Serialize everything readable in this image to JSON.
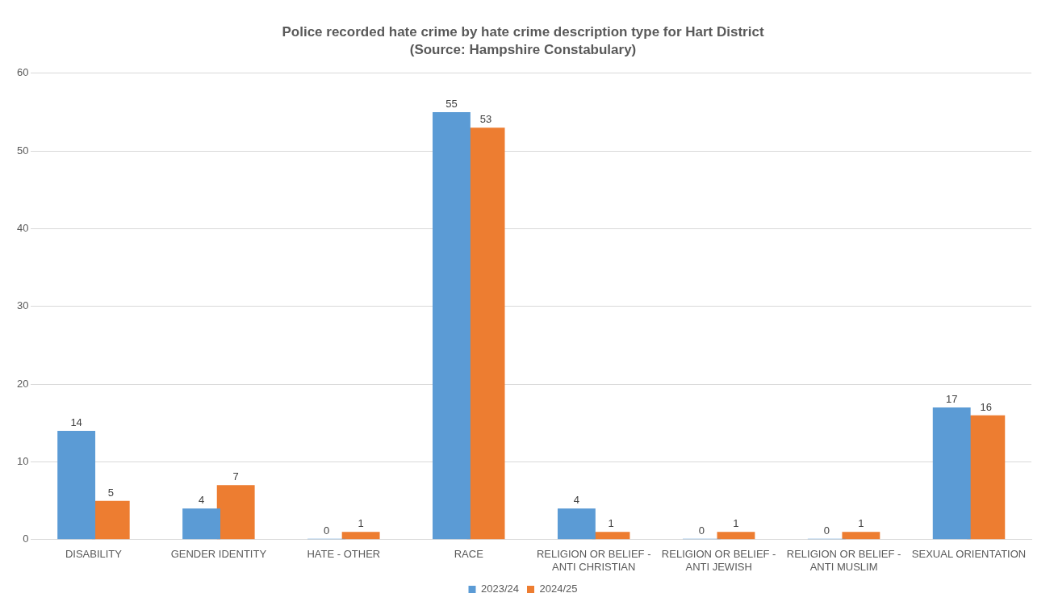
{
  "chart_data": {
    "type": "bar",
    "title": "Police recorded hate crime by hate crime description type for Hart District",
    "subtitle": "(Source: Hampshire Constabulary)",
    "categories": [
      "DISABILITY",
      "GENDER IDENTITY",
      "HATE - OTHER",
      "RACE",
      "RELIGION OR BELIEF - ANTI CHRISTIAN",
      "RELIGION OR BELIEF - ANTI JEWISH",
      "RELIGION OR BELIEF - ANTI MUSLIM",
      "SEXUAL ORIENTATION"
    ],
    "series": [
      {
        "name": "2023/24",
        "color": "#5b9bd5",
        "values": [
          14,
          4,
          0,
          55,
          4,
          0,
          0,
          17
        ]
      },
      {
        "name": "2024/25",
        "color": "#ed7d31",
        "values": [
          5,
          7,
          1,
          53,
          1,
          1,
          1,
          16
        ]
      }
    ],
    "ylim": [
      0,
      60
    ],
    "yticks": [
      0,
      10,
      20,
      30,
      40,
      50,
      60
    ],
    "grid": "y",
    "legend": "bottom",
    "data_labels": true
  }
}
